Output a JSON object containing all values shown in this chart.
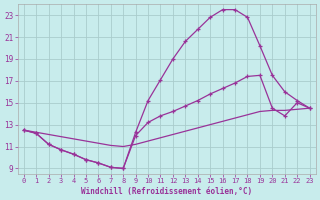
{
  "bg_color": "#c8ecec",
  "line_color": "#993399",
  "grid_color": "#aacccc",
  "xlabel": "Windchill (Refroidissement éolien,°C)",
  "xlabel_color": "#993399",
  "tick_color": "#993399",
  "xlim": [
    -0.5,
    23.5
  ],
  "ylim": [
    8.5,
    24.0
  ],
  "yticks": [
    9,
    11,
    13,
    15,
    17,
    19,
    21,
    23
  ],
  "xticks": [
    0,
    1,
    2,
    3,
    4,
    5,
    6,
    7,
    8,
    9,
    10,
    11,
    12,
    13,
    14,
    15,
    16,
    17,
    18,
    19,
    20,
    21,
    22,
    23
  ],
  "curve1_x": [
    0,
    1,
    2,
    3,
    4,
    5,
    6,
    7,
    8,
    9,
    10,
    11,
    12,
    13,
    14,
    15,
    16,
    17,
    18,
    19,
    20,
    21,
    22,
    23
  ],
  "curve1_y": [
    12.5,
    12.2,
    11.2,
    10.7,
    10.3,
    9.8,
    9.5,
    9.1,
    9.0,
    12.3,
    15.2,
    17.1,
    19.0,
    20.6,
    21.7,
    22.8,
    23.5,
    23.5,
    22.8,
    20.2,
    17.5,
    16.0,
    15.2,
    14.5
  ],
  "curve2_x": [
    0,
    1,
    2,
    3,
    4,
    5,
    6,
    7,
    8,
    9,
    10,
    11,
    12,
    13,
    14,
    15,
    16,
    17,
    18,
    19,
    20,
    21,
    22,
    23
  ],
  "curve2_y": [
    12.5,
    12.2,
    11.2,
    10.7,
    10.3,
    9.8,
    9.5,
    9.1,
    9.0,
    12.0,
    13.2,
    13.8,
    14.2,
    14.7,
    15.2,
    15.8,
    16.3,
    16.8,
    17.4,
    17.5,
    14.5,
    13.8,
    15.0,
    14.5
  ],
  "curve3_x": [
    0,
    1,
    2,
    3,
    4,
    5,
    6,
    7,
    8,
    9,
    10,
    11,
    12,
    13,
    14,
    15,
    16,
    17,
    18,
    19,
    20,
    21,
    22,
    23
  ],
  "curve3_y": [
    12.5,
    12.3,
    12.1,
    11.9,
    11.7,
    11.5,
    11.3,
    11.1,
    11.0,
    11.2,
    11.5,
    11.8,
    12.1,
    12.4,
    12.7,
    13.0,
    13.3,
    13.6,
    13.9,
    14.2,
    14.3,
    14.3,
    14.4,
    14.5
  ]
}
